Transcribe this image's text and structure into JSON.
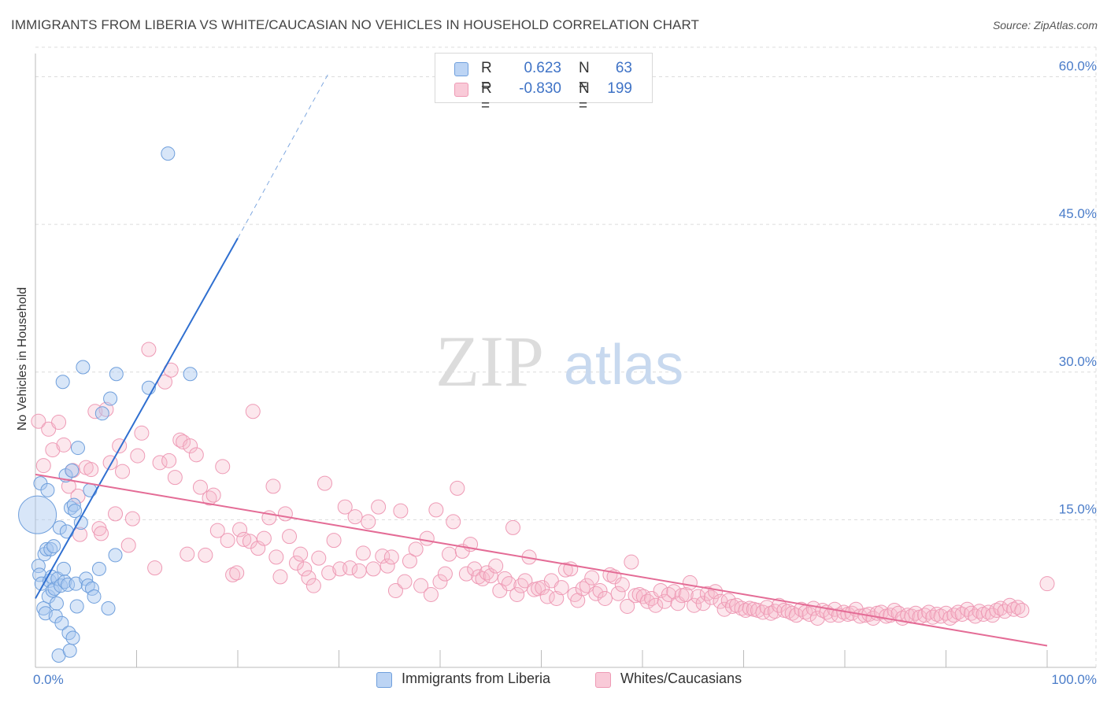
{
  "title": "IMMIGRANTS FROM LIBERIA VS WHITE/CAUCASIAN NO VEHICLES IN HOUSEHOLD CORRELATION CHART",
  "source": "Source: ZipAtlas.com",
  "watermark": {
    "zip": "ZIP",
    "atlas": "atlas"
  },
  "colors": {
    "blue_fill": "#a9c8f0",
    "blue_stroke": "#6f9fdc",
    "blue_line": "#2f6fd0",
    "pink_fill": "#f5b9cb",
    "pink_stroke": "#ee9ab5",
    "pink_line": "#e46c96",
    "tick_text": "#4a7cc9",
    "grid": "#dcdcdc"
  },
  "legend": {
    "r_label": "R =",
    "n_label": "N =",
    "rows": [
      {
        "r": "0.623",
        "n": "63"
      },
      {
        "r": "-0.830",
        "n": "199"
      }
    ]
  },
  "bottom_legend": [
    "Immigrants from Liberia",
    "Whites/Caucasians"
  ],
  "chart_data": {
    "type": "scatter",
    "title": "IMMIGRANTS FROM LIBERIA VS WHITE/CAUCASIAN NO VEHICLES IN HOUSEHOLD CORRELATION CHART",
    "xlabel": "",
    "ylabel": "No Vehicles in Household",
    "xlim": [
      0,
      100
    ],
    "ylim": [
      0,
      63
    ],
    "x_tick_labels": [
      "0.0%",
      "100.0%"
    ],
    "y_ticks": [
      15,
      30,
      45,
      60
    ],
    "y_tick_labels": [
      "15.0%",
      "30.0%",
      "45.0%",
      "60.0%"
    ],
    "grid": true,
    "legend_position": "top-center",
    "series": [
      {
        "name": "Immigrants from Liberia",
        "r": 0.623,
        "n": 63,
        "trend": {
          "x": [
            0,
            20
          ],
          "y": [
            7.0,
            43.6
          ],
          "dashed_to": [
            29,
            60.4
          ]
        },
        "points": [
          [
            0.2,
            15.5,
            3
          ],
          [
            0.3,
            10.3,
            1
          ],
          [
            0.4,
            9.4,
            1
          ],
          [
            0.5,
            18.7,
            1
          ],
          [
            0.6,
            8.5,
            1
          ],
          [
            0.8,
            6.0,
            1
          ],
          [
            0.9,
            11.5,
            1
          ],
          [
            1.0,
            5.5,
            1
          ],
          [
            1.1,
            12.0,
            1
          ],
          [
            1.2,
            18.0,
            1
          ],
          [
            1.3,
            7.2,
            1
          ],
          [
            1.4,
            8.8,
            1
          ],
          [
            1.5,
            12.0,
            1
          ],
          [
            1.6,
            9.2,
            1
          ],
          [
            1.7,
            7.8,
            1
          ],
          [
            1.8,
            12.3,
            1
          ],
          [
            1.9,
            8.0,
            1
          ],
          [
            2.0,
            5.2,
            1
          ],
          [
            2.1,
            6.5,
            1
          ],
          [
            2.2,
            9.0,
            1
          ],
          [
            2.3,
            1.2,
            1
          ],
          [
            2.4,
            14.2,
            1
          ],
          [
            2.5,
            8.3,
            1
          ],
          [
            2.6,
            4.5,
            1
          ],
          [
            2.7,
            29.0,
            1
          ],
          [
            2.8,
            10.0,
            1
          ],
          [
            2.9,
            8.7,
            1
          ],
          [
            3.0,
            19.5,
            1
          ],
          [
            3.1,
            13.8,
            1
          ],
          [
            3.2,
            8.4,
            1
          ],
          [
            3.3,
            3.5,
            1
          ],
          [
            3.4,
            1.7,
            1
          ],
          [
            3.5,
            16.2,
            1
          ],
          [
            3.6,
            20.0,
            1
          ],
          [
            3.7,
            3.0,
            1
          ],
          [
            3.8,
            16.5,
            1
          ],
          [
            3.9,
            15.9,
            1
          ],
          [
            4.0,
            8.5,
            1
          ],
          [
            4.1,
            6.2,
            1
          ],
          [
            4.2,
            22.3,
            1
          ],
          [
            4.5,
            14.7,
            1
          ],
          [
            4.7,
            30.5,
            1
          ],
          [
            5.0,
            9.0,
            1
          ],
          [
            5.2,
            8.3,
            1
          ],
          [
            5.4,
            18.0,
            1
          ],
          [
            5.6,
            8.0,
            1
          ],
          [
            5.8,
            7.2,
            1
          ],
          [
            6.3,
            10.0,
            1
          ],
          [
            6.6,
            25.8,
            1
          ],
          [
            7.2,
            6.0,
            1
          ],
          [
            7.4,
            27.3,
            1
          ],
          [
            7.9,
            11.4,
            1
          ],
          [
            8.0,
            29.8,
            1
          ],
          [
            11.2,
            28.4,
            1
          ],
          [
            13.1,
            52.2,
            1
          ],
          [
            15.3,
            29.8,
            1
          ]
        ]
      },
      {
        "name": "Whites/Caucasians",
        "r": -0.83,
        "n": 199,
        "trend": {
          "x": [
            0,
            100
          ],
          "y": [
            19.6,
            2.2
          ]
        },
        "points": [
          [
            0.3,
            25.0
          ],
          [
            0.8,
            20.5
          ],
          [
            1.3,
            24.2
          ],
          [
            1.7,
            22.1
          ],
          [
            2.3,
            24.9
          ],
          [
            2.8,
            22.6
          ],
          [
            3.3,
            18.4
          ],
          [
            3.7,
            20.0
          ],
          [
            4.2,
            17.4
          ],
          [
            4.4,
            13.5
          ],
          [
            5.0,
            20.3
          ],
          [
            5.5,
            20.1
          ],
          [
            5.9,
            26.0
          ],
          [
            6.3,
            14.1
          ],
          [
            6.5,
            13.6
          ],
          [
            7.0,
            26.2
          ],
          [
            7.4,
            20.8
          ],
          [
            7.9,
            15.6
          ],
          [
            8.3,
            22.5
          ],
          [
            8.6,
            19.9
          ],
          [
            9.2,
            12.4
          ],
          [
            9.6,
            15.1
          ],
          [
            10.1,
            21.5
          ],
          [
            10.5,
            23.8
          ],
          [
            11.2,
            32.3
          ],
          [
            11.8,
            10.1
          ],
          [
            12.3,
            20.8
          ],
          [
            12.8,
            29.0
          ],
          [
            13.2,
            21.0
          ],
          [
            13.4,
            30.2
          ],
          [
            13.8,
            19.3
          ],
          [
            14.3,
            23.1
          ],
          [
            14.6,
            22.9
          ],
          [
            15.0,
            11.5
          ],
          [
            15.3,
            22.5
          ],
          [
            15.9,
            21.6
          ],
          [
            16.3,
            18.3
          ],
          [
            16.8,
            11.4
          ],
          [
            17.2,
            17.2
          ],
          [
            17.6,
            17.5
          ],
          [
            18.0,
            13.9
          ],
          [
            18.5,
            20.4
          ],
          [
            19.0,
            12.9
          ],
          [
            19.5,
            9.4
          ],
          [
            19.9,
            9.6
          ],
          [
            20.2,
            14.0
          ],
          [
            20.6,
            13.0
          ],
          [
            21.2,
            12.8
          ],
          [
            21.5,
            26.0
          ],
          [
            22.0,
            12.1
          ],
          [
            22.6,
            13.1
          ],
          [
            23.1,
            15.2
          ],
          [
            23.5,
            18.4
          ],
          [
            23.8,
            11.2
          ],
          [
            24.2,
            9.2
          ],
          [
            24.7,
            15.6
          ],
          [
            25.1,
            13.3
          ],
          [
            25.8,
            10.6
          ],
          [
            26.2,
            11.5
          ],
          [
            26.6,
            10.0
          ],
          [
            27.0,
            9.1
          ],
          [
            27.5,
            8.3
          ],
          [
            28.0,
            11.1
          ],
          [
            28.6,
            18.7
          ],
          [
            29.0,
            9.6
          ],
          [
            29.5,
            12.9
          ],
          [
            30.1,
            10.0
          ],
          [
            30.6,
            16.3
          ],
          [
            31.1,
            10.1
          ],
          [
            31.6,
            15.3
          ],
          [
            32.0,
            9.8
          ],
          [
            32.4,
            11.6
          ],
          [
            32.9,
            14.8
          ],
          [
            33.4,
            10.0
          ],
          [
            33.9,
            16.3
          ],
          [
            34.3,
            11.3
          ],
          [
            34.8,
            10.3
          ],
          [
            35.2,
            11.2
          ],
          [
            35.6,
            7.8
          ],
          [
            36.1,
            15.9
          ],
          [
            36.5,
            8.7
          ],
          [
            37.0,
            10.8
          ],
          [
            37.6,
            12.0
          ],
          [
            38.1,
            8.3
          ],
          [
            38.7,
            13.1
          ],
          [
            39.1,
            7.4
          ],
          [
            39.6,
            16.0
          ],
          [
            40.0,
            8.7
          ],
          [
            40.5,
            9.5
          ],
          [
            40.9,
            11.5
          ],
          [
            41.3,
            14.8
          ],
          [
            41.7,
            18.2
          ],
          [
            42.2,
            11.8
          ],
          [
            42.6,
            9.5
          ],
          [
            43.0,
            12.5
          ],
          [
            43.4,
            10.0
          ],
          [
            43.8,
            9.2
          ],
          [
            44.2,
            9.0
          ],
          [
            44.6,
            9.6
          ],
          [
            45.0,
            9.3
          ],
          [
            45.5,
            10.3
          ],
          [
            45.9,
            7.8
          ],
          [
            46.4,
            9.0
          ],
          [
            46.8,
            8.5
          ],
          [
            47.2,
            14.2
          ],
          [
            47.6,
            7.4
          ],
          [
            48.0,
            8.3
          ],
          [
            48.4,
            8.8
          ],
          [
            48.8,
            11.2
          ],
          [
            49.3,
            7.9
          ],
          [
            49.7,
            8.0
          ],
          [
            50.1,
            8.1
          ],
          [
            50.6,
            7.2
          ],
          [
            51.0,
            8.8
          ],
          [
            51.5,
            7.0
          ],
          [
            52.0,
            8.1
          ],
          [
            52.4,
            9.9
          ],
          [
            52.9,
            10.0
          ],
          [
            53.3,
            7.4
          ],
          [
            53.6,
            6.8
          ],
          [
            54.1,
            8.0
          ],
          [
            54.5,
            8.3
          ],
          [
            55.0,
            9.1
          ],
          [
            55.4,
            7.5
          ],
          [
            55.8,
            7.8
          ],
          [
            56.3,
            7.0
          ],
          [
            56.8,
            9.4
          ],
          [
            57.2,
            9.2
          ],
          [
            57.6,
            7.5
          ],
          [
            58.0,
            8.4
          ],
          [
            58.5,
            6.2
          ],
          [
            58.9,
            10.7
          ],
          [
            59.3,
            7.3
          ],
          [
            59.7,
            7.4
          ],
          [
            60.1,
            7.2
          ],
          [
            60.5,
            6.7
          ],
          [
            60.9,
            7.0
          ],
          [
            61.3,
            6.3
          ],
          [
            61.8,
            7.8
          ],
          [
            62.2,
            6.7
          ],
          [
            62.6,
            7.4
          ],
          [
            63.1,
            7.7
          ],
          [
            63.5,
            6.5
          ],
          [
            63.9,
            7.3
          ],
          [
            64.3,
            7.4
          ],
          [
            64.7,
            8.6
          ],
          [
            65.1,
            6.3
          ],
          [
            65.5,
            7.2
          ],
          [
            66.0,
            6.5
          ],
          [
            66.4,
            7.5
          ],
          [
            66.8,
            7.1
          ],
          [
            67.2,
            7.7
          ],
          [
            67.7,
            6.7
          ],
          [
            68.1,
            5.9
          ],
          [
            68.5,
            6.8
          ],
          [
            68.9,
            6.2
          ],
          [
            69.3,
            6.3
          ],
          [
            69.8,
            6.0
          ],
          [
            70.2,
            5.8
          ],
          [
            70.6,
            6.0
          ],
          [
            71.0,
            5.9
          ],
          [
            71.4,
            5.8
          ],
          [
            71.9,
            5.6
          ],
          [
            72.3,
            6.1
          ],
          [
            72.7,
            5.5
          ],
          [
            73.1,
            5.7
          ],
          [
            73.5,
            6.3
          ],
          [
            74.0,
            5.8
          ],
          [
            74.4,
            5.7
          ],
          [
            74.8,
            5.5
          ],
          [
            75.2,
            5.3
          ],
          [
            75.7,
            5.9
          ],
          [
            76.1,
            5.6
          ],
          [
            76.5,
            5.4
          ],
          [
            76.9,
            6.0
          ],
          [
            77.3,
            5.0
          ],
          [
            77.8,
            5.8
          ],
          [
            78.2,
            5.6
          ],
          [
            78.6,
            5.3
          ],
          [
            79.0,
            5.9
          ],
          [
            79.4,
            5.3
          ],
          [
            79.9,
            5.6
          ],
          [
            80.3,
            5.4
          ],
          [
            80.7,
            5.5
          ],
          [
            81.1,
            5.9
          ],
          [
            81.5,
            5.2
          ],
          [
            82.0,
            5.3
          ],
          [
            82.4,
            5.4
          ],
          [
            82.8,
            5.0
          ],
          [
            83.2,
            5.5
          ],
          [
            83.6,
            5.6
          ],
          [
            84.1,
            5.2
          ],
          [
            84.5,
            5.3
          ],
          [
            84.9,
            5.8
          ],
          [
            85.3,
            5.5
          ],
          [
            85.7,
            5.0
          ],
          [
            86.2,
            5.3
          ],
          [
            86.6,
            5.2
          ],
          [
            87.0,
            5.5
          ],
          [
            87.4,
            5.1
          ],
          [
            87.9,
            5.3
          ],
          [
            88.3,
            5.6
          ],
          [
            88.7,
            5.1
          ],
          [
            89.1,
            5.4
          ],
          [
            89.5,
            5.2
          ],
          [
            90.0,
            5.5
          ],
          [
            90.4,
            5.0
          ],
          [
            90.8,
            5.3
          ],
          [
            91.2,
            5.6
          ],
          [
            91.6,
            5.4
          ],
          [
            92.1,
            5.9
          ],
          [
            92.5,
            5.5
          ],
          [
            92.9,
            5.2
          ],
          [
            93.3,
            5.7
          ],
          [
            93.7,
            5.4
          ],
          [
            94.2,
            5.6
          ],
          [
            94.6,
            5.3
          ],
          [
            95.0,
            5.8
          ],
          [
            95.4,
            6.0
          ],
          [
            95.8,
            5.7
          ],
          [
            96.3,
            6.3
          ],
          [
            96.7,
            5.9
          ],
          [
            97.1,
            6.1
          ],
          [
            97.5,
            5.8
          ],
          [
            100.0,
            8.5
          ]
        ]
      }
    ]
  }
}
